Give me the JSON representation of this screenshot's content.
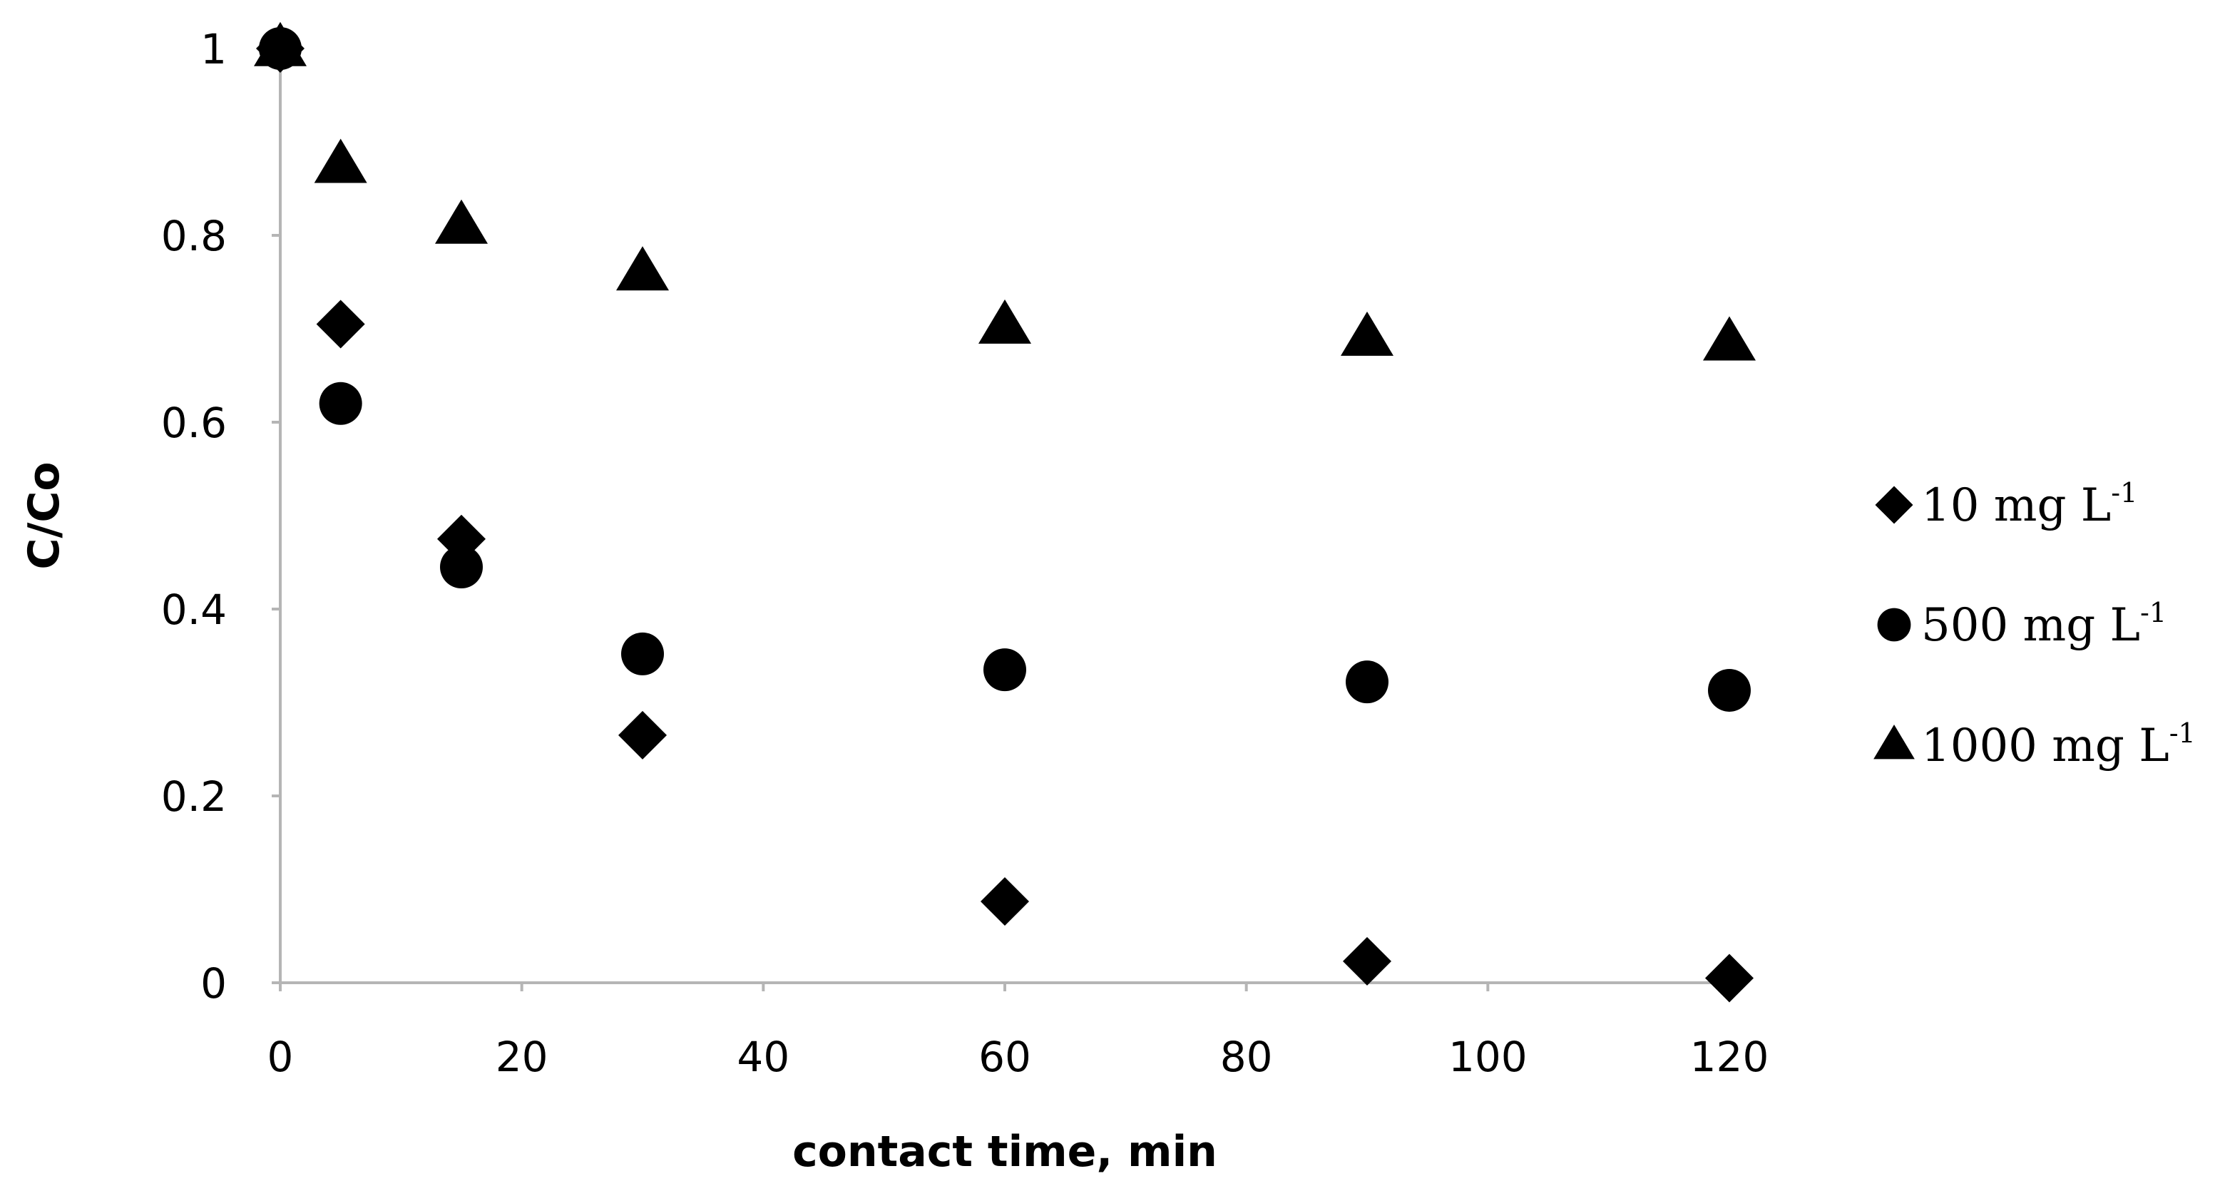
{
  "chart_data": {
    "type": "scatter",
    "xlabel": "contact time, min",
    "ylabel": "C/Co",
    "xlim": [
      0,
      120
    ],
    "ylim": [
      0,
      1
    ],
    "xticks": [
      0,
      20,
      40,
      60,
      80,
      100,
      120
    ],
    "yticks": [
      0,
      0.2,
      0.4,
      0.6,
      0.8,
      1
    ],
    "ytick_labels": [
      "0",
      "0.2",
      "0.4",
      "0.6",
      "0.8",
      "1"
    ],
    "grid": false,
    "legend_position": "right",
    "series": [
      {
        "name": "10 mg L",
        "name_superscript": "-1",
        "marker": "diamond",
        "color": "#000000",
        "points": [
          {
            "x": 0,
            "y": 1.0
          },
          {
            "x": 5,
            "y": 0.705
          },
          {
            "x": 15,
            "y": 0.475
          },
          {
            "x": 30,
            "y": 0.265
          },
          {
            "x": 60,
            "y": 0.087
          },
          {
            "x": 90,
            "y": 0.023
          },
          {
            "x": 120,
            "y": 0.005
          }
        ]
      },
      {
        "name": "500 mg L",
        "name_superscript": "-1",
        "marker": "circle",
        "color": "#000000",
        "points": [
          {
            "x": 0,
            "y": 1.0
          },
          {
            "x": 5,
            "y": 0.62
          },
          {
            "x": 15,
            "y": 0.445
          },
          {
            "x": 30,
            "y": 0.352
          },
          {
            "x": 60,
            "y": 0.335
          },
          {
            "x": 90,
            "y": 0.322
          },
          {
            "x": 120,
            "y": 0.313
          }
        ]
      },
      {
        "name": "1000 mg L",
        "name_superscript": "-1",
        "marker": "triangle",
        "color": "#000000",
        "points": [
          {
            "x": 0,
            "y": 1.0
          },
          {
            "x": 5,
            "y": 0.875
          },
          {
            "x": 15,
            "y": 0.81
          },
          {
            "x": 30,
            "y": 0.76
          },
          {
            "x": 60,
            "y": 0.703
          },
          {
            "x": 90,
            "y": 0.69
          },
          {
            "x": 120,
            "y": 0.685
          }
        ]
      }
    ]
  }
}
